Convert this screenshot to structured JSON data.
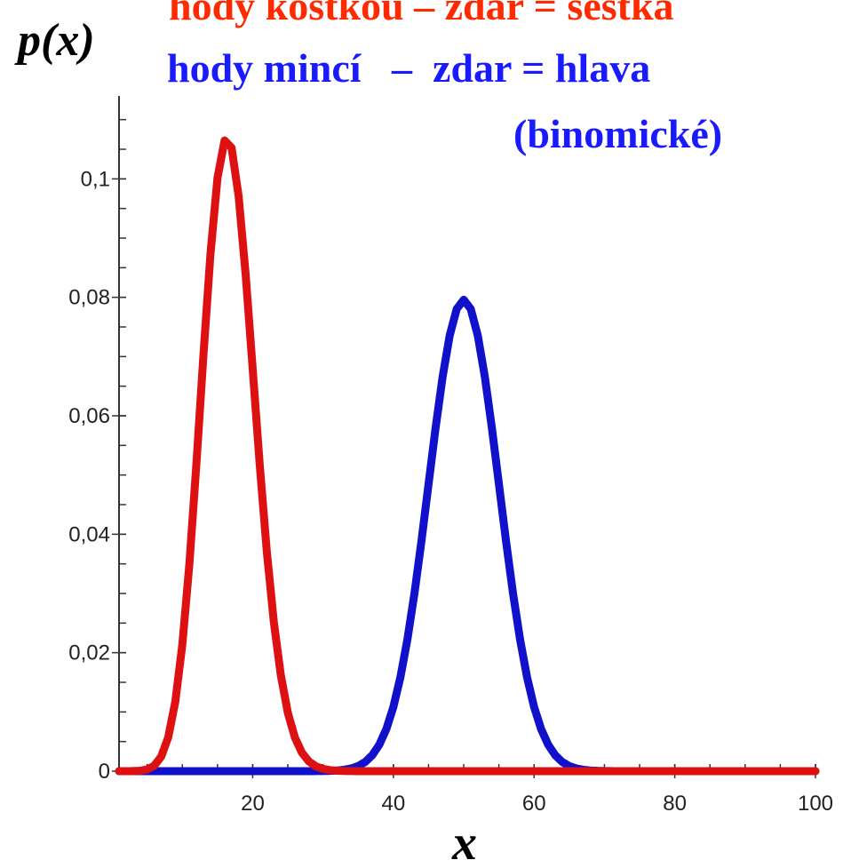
{
  "chart_data": {
    "type": "line",
    "title_lines": [
      {
        "text": "hody kostkou – zdar = šestka",
        "color": "#ff2a00"
      },
      {
        "text": "hody mincí   –  zdar = hlava",
        "color": "#1a1aff"
      },
      {
        "text": "(binomické)",
        "color": "#1a1aff"
      }
    ],
    "ylabel": "p(x)",
    "xlabel": "x",
    "xlim": [
      1,
      100
    ],
    "ylim": [
      0,
      0.114
    ],
    "x_ticks": [
      20,
      40,
      60,
      80,
      100
    ],
    "x_tick_labels": [
      "20",
      "40",
      "60",
      "80",
      "100"
    ],
    "y_ticks": [
      0,
      0.02,
      0.04,
      0.06,
      0.08,
      0.1
    ],
    "y_tick_labels": [
      "0",
      "0,02",
      "0,04",
      "0,06",
      "0,08",
      "0,1"
    ],
    "grid": false,
    "series": [
      {
        "color": "#1111cc",
        "distribution": "binomial",
        "trials": 100,
        "p": 0.5,
        "x": [
          0,
          30,
          32,
          34,
          36,
          38,
          40,
          42,
          44,
          46,
          48,
          50,
          52,
          54,
          56,
          58,
          60,
          62,
          64,
          66,
          68,
          100
        ],
        "y": [
          0,
          0.0,
          0.0001,
          0.0005,
          0.0016,
          0.0045,
          0.0108,
          0.0223,
          0.039,
          0.058,
          0.0735,
          0.0796,
          0.0735,
          0.058,
          0.039,
          0.0223,
          0.0108,
          0.0045,
          0.0016,
          0.0005,
          0.0001,
          0
        ]
      },
      {
        "color": "#dd1111",
        "distribution": "binomial",
        "trials": 100,
        "p": 0.1667,
        "x": [
          0,
          4,
          6,
          8,
          10,
          12,
          14,
          16,
          17,
          18,
          20,
          22,
          24,
          26,
          28,
          30,
          32,
          34,
          100
        ],
        "y": [
          0,
          0.0,
          0.0006,
          0.0047,
          0.0218,
          0.0556,
          0.0926,
          0.107,
          0.1051,
          0.0981,
          0.0704,
          0.0364,
          0.0141,
          0.0042,
          0.001,
          0.0002,
          0.0,
          0,
          0
        ]
      }
    ]
  }
}
